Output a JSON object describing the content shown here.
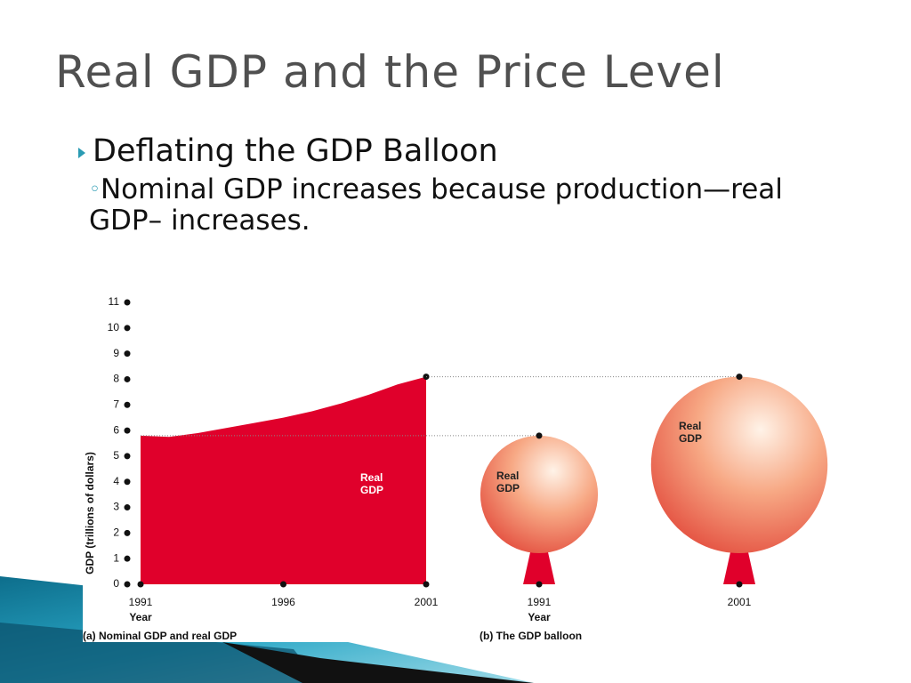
{
  "slide": {
    "title": "Real GDP and the Price Level",
    "bullet": "Deflating the GDP Balloon",
    "sub_bullet": "Nominal GDP increases because production—real GDP– increases."
  },
  "chart_data": [
    {
      "type": "area",
      "caption": "(a) Nominal GDP and real GDP",
      "y_label": "GDP (trillions of dollars)",
      "x_label": "Year",
      "annotation": "Real GDP",
      "color": "#e0002b",
      "x": [
        1991,
        1992,
        1993,
        1994,
        1995,
        1996,
        1997,
        1998,
        1999,
        2000,
        2001
      ],
      "values": [
        5.8,
        5.75,
        5.9,
        6.1,
        6.3,
        6.5,
        6.75,
        7.05,
        7.4,
        7.8,
        8.1
      ],
      "xlim": [
        1991,
        2001
      ],
      "xticks": [
        1991,
        1996,
        2001
      ],
      "ylim": [
        0,
        11
      ],
      "yticks": [
        0,
        1,
        2,
        3,
        4,
        5,
        6,
        7,
        8,
        9,
        10,
        11
      ]
    },
    {
      "type": "balloon",
      "caption": "(b) The GDP balloon",
      "x_label": "Year",
      "annotation": "Real GDP",
      "color": "#e0002b",
      "categories": [
        "1991",
        "2001"
      ],
      "values": [
        5.8,
        8.1
      ],
      "ylim": [
        0,
        11
      ]
    }
  ]
}
